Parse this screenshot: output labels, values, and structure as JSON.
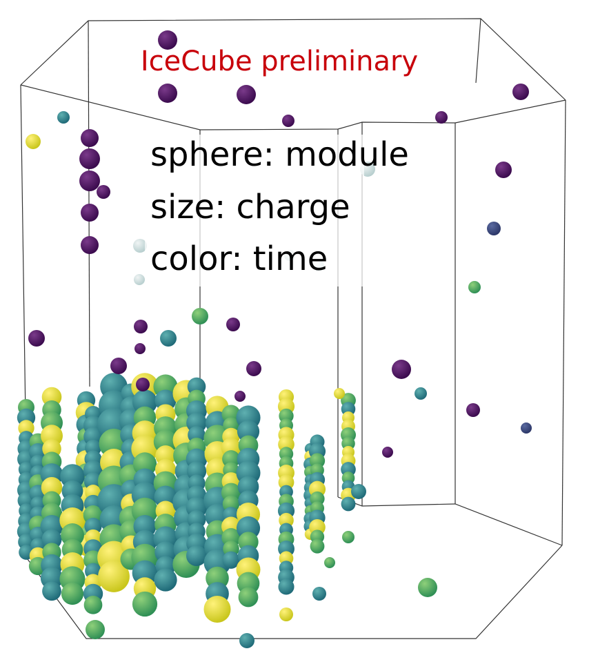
{
  "annotations": {
    "watermark": "IceCube preliminary",
    "legend": [
      "sphere: module",
      "size: charge",
      "color: time"
    ]
  }
}
